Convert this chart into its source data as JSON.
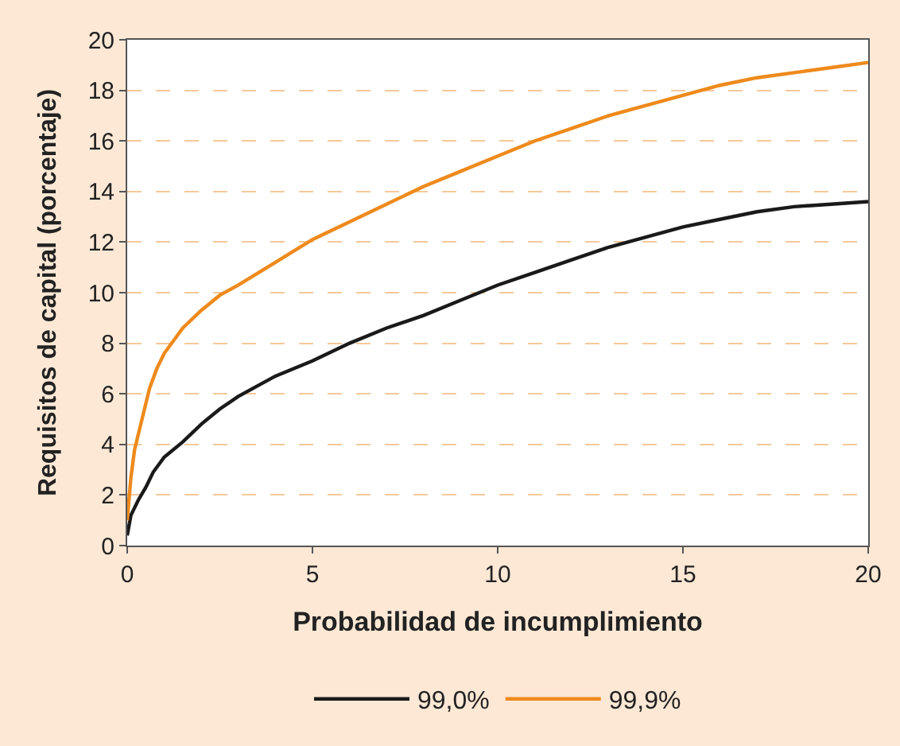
{
  "chart_data": {
    "type": "line",
    "xlabel": "Probabilidad de incumplimiento",
    "ylabel": "Requisitos de capital (porcentaje)",
    "xlim": [
      0,
      20
    ],
    "xticks": [
      0,
      5,
      10,
      15,
      20
    ],
    "ylim": [
      0,
      20
    ],
    "yticks": [
      0,
      2,
      4,
      6,
      8,
      10,
      12,
      14,
      16,
      18,
      20
    ],
    "grid": "y",
    "legend": "bottom",
    "line_style": "solid",
    "marker": "none",
    "series": [
      {
        "name": "99,0%",
        "color": "#1a1a1a",
        "x": [
          0,
          0.1,
          0.3,
          0.5,
          0.7,
          1,
          1.5,
          2,
          2.5,
          3,
          4,
          5,
          6,
          7,
          8,
          9,
          10,
          11,
          12,
          13,
          14,
          15,
          16,
          17,
          18,
          19,
          20
        ],
        "values": [
          0.4,
          1.2,
          1.8,
          2.3,
          2.9,
          3.5,
          4.1,
          4.8,
          5.4,
          5.9,
          6.7,
          7.3,
          8.0,
          8.6,
          9.1,
          9.7,
          10.3,
          10.8,
          11.3,
          11.8,
          12.2,
          12.6,
          12.9,
          13.2,
          13.4,
          13.5,
          13.6
        ]
      },
      {
        "name": "99,9%",
        "color": "#ee8a1c",
        "x": [
          0,
          0.1,
          0.2,
          0.4,
          0.6,
          0.8,
          1,
          1.5,
          2,
          2.5,
          3,
          4,
          5,
          6,
          7,
          8,
          9,
          10,
          11,
          12,
          13,
          14,
          15,
          16,
          17,
          18,
          19,
          20
        ],
        "values": [
          1.0,
          2.7,
          3.8,
          5.0,
          6.2,
          7.0,
          7.6,
          8.6,
          9.3,
          9.9,
          10.3,
          11.2,
          12.1,
          12.8,
          13.5,
          14.2,
          14.8,
          15.4,
          16.0,
          16.5,
          17.0,
          17.4,
          17.8,
          18.2,
          18.5,
          18.7,
          18.9,
          19.1
        ]
      }
    ]
  }
}
